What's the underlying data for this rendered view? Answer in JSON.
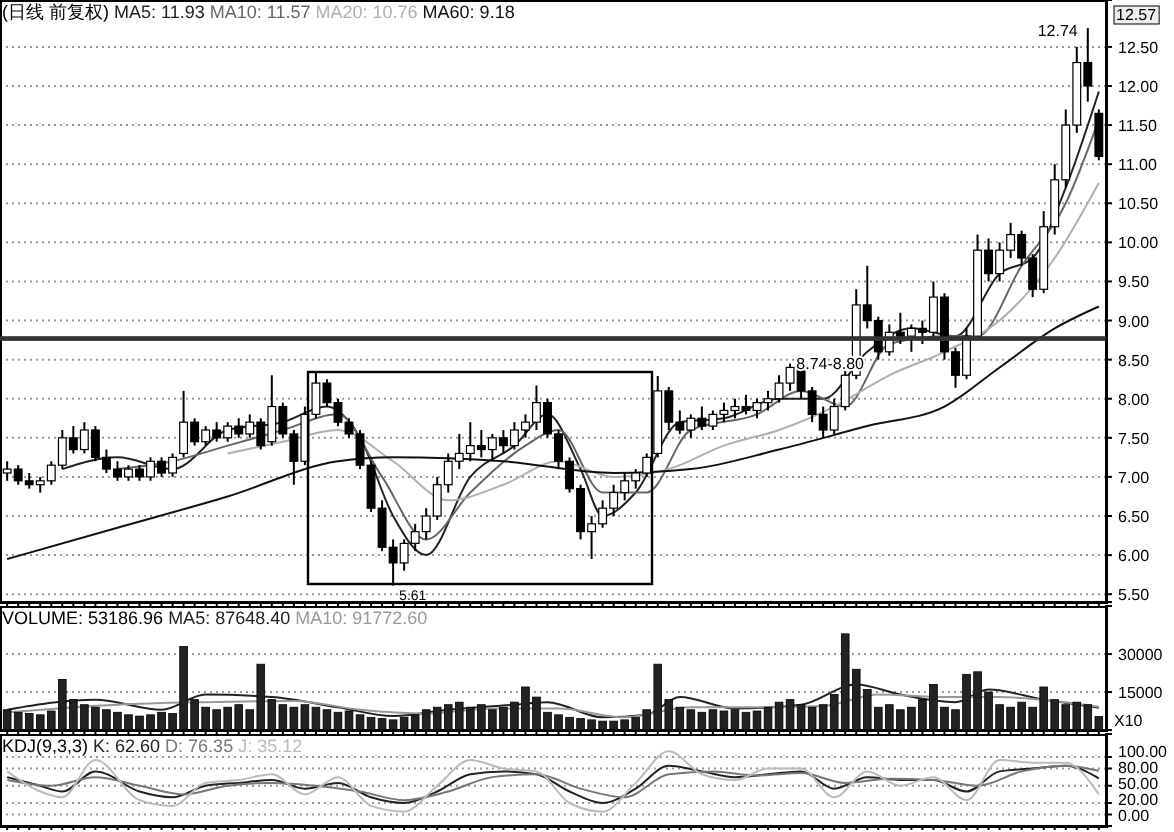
{
  "chart_data": [
    {
      "type": "candlestick",
      "title": "(日线 前复权)",
      "grid": "y",
      "tick_labels": "y",
      "categories": [
        null,
        null,
        null,
        null,
        null,
        null,
        null,
        null,
        null,
        null,
        null,
        null,
        null,
        null,
        null,
        null,
        null,
        null,
        null,
        null,
        null,
        null,
        null,
        null,
        null,
        null,
        null,
        null,
        null,
        null,
        null,
        null,
        null,
        null,
        null,
        null,
        null,
        null,
        null,
        null,
        null,
        null,
        null,
        null,
        null,
        null,
        null,
        null,
        null,
        null,
        null,
        null,
        null,
        null,
        null,
        null,
        null,
        null,
        null,
        null,
        null,
        null,
        null,
        null,
        null,
        null,
        null,
        null,
        null,
        null,
        null,
        null,
        null,
        null,
        null,
        null,
        null,
        null,
        null,
        null,
        null,
        null,
        null,
        null,
        null,
        null,
        null,
        null,
        null,
        null,
        null,
        null,
        null,
        null,
        null,
        null,
        null,
        null,
        null,
        null
      ],
      "ylim": [
        5.4,
        13.1
      ],
      "yticks": [
        {
          "value": 5.5,
          "label": "5.50"
        },
        {
          "value": 6,
          "label": "6.00"
        },
        {
          "value": 6.5,
          "label": "6.50"
        },
        {
          "value": 7,
          "label": "7.00"
        },
        {
          "value": 7.5,
          "label": "7.50"
        },
        {
          "value": 8,
          "label": "8.00"
        },
        {
          "value": 8.5,
          "label": "8.50"
        },
        {
          "value": 9,
          "label": "9.00"
        },
        {
          "value": 9.5,
          "label": "9.50"
        },
        {
          "value": 10,
          "label": "10.00"
        },
        {
          "value": 10.5,
          "label": "10.50"
        },
        {
          "value": 11,
          "label": "11.00"
        },
        {
          "value": 11.5,
          "label": "11.50"
        },
        {
          "value": 12,
          "label": "12.00"
        },
        {
          "value": 12.5,
          "label": "12.50"
        }
      ],
      "ohlc": [
        [
          7.05,
          7.2,
          6.95,
          7.1
        ],
        [
          7.1,
          7.15,
          6.9,
          6.95
        ],
        [
          6.95,
          7.05,
          6.85,
          6.9
        ],
        [
          6.9,
          7.0,
          6.8,
          6.95
        ],
        [
          6.95,
          7.2,
          6.9,
          7.15
        ],
        [
          7.15,
          7.6,
          7.1,
          7.5
        ],
        [
          7.5,
          7.65,
          7.3,
          7.35
        ],
        [
          7.35,
          7.7,
          7.3,
          7.6
        ],
        [
          7.6,
          7.65,
          7.2,
          7.25
        ],
        [
          7.25,
          7.35,
          7.05,
          7.1
        ],
        [
          7.1,
          7.2,
          6.95,
          7.0
        ],
        [
          7.0,
          7.15,
          6.95,
          7.1
        ],
        [
          7.1,
          7.15,
          6.95,
          7.0
        ],
        [
          7.0,
          7.25,
          6.95,
          7.2
        ],
        [
          7.2,
          7.25,
          7.0,
          7.05
        ],
        [
          7.05,
          7.3,
          7.0,
          7.25
        ],
        [
          7.3,
          8.1,
          7.25,
          7.7
        ],
        [
          7.7,
          7.75,
          7.4,
          7.45
        ],
        [
          7.45,
          7.65,
          7.4,
          7.6
        ],
        [
          7.6,
          7.7,
          7.45,
          7.5
        ],
        [
          7.5,
          7.7,
          7.45,
          7.65
        ],
        [
          7.65,
          7.75,
          7.5,
          7.55
        ],
        [
          7.55,
          7.8,
          7.5,
          7.7
        ],
        [
          7.7,
          7.75,
          7.35,
          7.4
        ],
        [
          7.45,
          8.3,
          7.4,
          7.9
        ],
        [
          7.9,
          7.95,
          7.5,
          7.55
        ],
        [
          7.55,
          7.6,
          6.9,
          7.2
        ],
        [
          7.2,
          7.9,
          7.15,
          7.8
        ],
        [
          7.8,
          8.35,
          7.75,
          8.2
        ],
        [
          8.2,
          8.25,
          7.9,
          7.95
        ],
        [
          7.95,
          8.0,
          7.65,
          7.7
        ],
        [
          7.7,
          7.75,
          7.5,
          7.55
        ],
        [
          7.55,
          7.6,
          7.1,
          7.15
        ],
        [
          7.15,
          7.2,
          6.55,
          6.6
        ],
        [
          6.6,
          6.7,
          6.05,
          6.1
        ],
        [
          6.1,
          6.2,
          5.61,
          5.9
        ],
        [
          5.9,
          6.2,
          5.8,
          6.15
        ],
        [
          6.15,
          6.4,
          6.05,
          6.3
        ],
        [
          6.3,
          6.6,
          6.2,
          6.5
        ],
        [
          6.5,
          7.0,
          6.45,
          6.9
        ],
        [
          6.9,
          7.3,
          6.8,
          7.2
        ],
        [
          7.2,
          7.55,
          7.1,
          7.3
        ],
        [
          7.3,
          7.7,
          7.2,
          7.4
        ],
        [
          7.4,
          7.6,
          7.25,
          7.35
        ],
        [
          7.35,
          7.55,
          7.2,
          7.5
        ],
        [
          7.5,
          7.6,
          7.3,
          7.4
        ],
        [
          7.4,
          7.7,
          7.35,
          7.6
        ],
        [
          7.6,
          7.8,
          7.5,
          7.7
        ],
        [
          7.7,
          8.17,
          7.6,
          7.95
        ],
        [
          7.95,
          8.0,
          7.5,
          7.55
        ],
        [
          7.55,
          7.6,
          7.1,
          7.2
        ],
        [
          7.2,
          7.25,
          6.8,
          6.85
        ],
        [
          6.85,
          6.9,
          6.2,
          6.3
        ],
        [
          6.3,
          6.5,
          5.95,
          6.4
        ],
        [
          6.4,
          6.7,
          6.35,
          6.6
        ],
        [
          6.6,
          6.9,
          6.5,
          6.8
        ],
        [
          6.8,
          7.05,
          6.7,
          6.95
        ],
        [
          6.95,
          7.1,
          6.85,
          7.05
        ],
        [
          7.05,
          7.3,
          7.0,
          7.25
        ],
        [
          7.3,
          8.29,
          7.25,
          8.1
        ],
        [
          8.1,
          8.15,
          7.6,
          7.7
        ],
        [
          7.7,
          7.85,
          7.55,
          7.6
        ],
        [
          7.6,
          7.8,
          7.5,
          7.75
        ],
        [
          7.75,
          7.9,
          7.6,
          7.65
        ],
        [
          7.65,
          7.85,
          7.6,
          7.8
        ],
        [
          7.8,
          7.95,
          7.7,
          7.85
        ],
        [
          7.85,
          8.0,
          7.75,
          7.9
        ],
        [
          7.9,
          8.05,
          7.8,
          7.85
        ],
        [
          7.85,
          8.0,
          7.75,
          7.95
        ],
        [
          7.95,
          8.1,
          7.85,
          8.0
        ],
        [
          8.0,
          8.3,
          7.95,
          8.2
        ],
        [
          8.2,
          8.45,
          8.1,
          8.4
        ],
        [
          8.4,
          8.5,
          8.0,
          8.1
        ],
        [
          8.1,
          8.15,
          7.7,
          7.8
        ],
        [
          7.8,
          7.9,
          7.5,
          7.6
        ],
        [
          7.6,
          8.0,
          7.55,
          7.9
        ],
        [
          7.9,
          8.4,
          7.85,
          8.3
        ],
        [
          8.3,
          9.4,
          8.25,
          9.2
        ],
        [
          9.2,
          9.7,
          8.9,
          9.0
        ],
        [
          9.0,
          9.05,
          8.5,
          8.6
        ],
        [
          8.6,
          8.95,
          8.55,
          8.85
        ],
        [
          8.85,
          9.1,
          8.7,
          8.8
        ],
        [
          8.8,
          8.95,
          8.6,
          8.9
        ],
        [
          8.9,
          9.0,
          8.7,
          8.85
        ],
        [
          8.85,
          9.5,
          8.8,
          9.3
        ],
        [
          9.3,
          9.35,
          8.5,
          8.6
        ],
        [
          8.6,
          8.65,
          8.14,
          8.3
        ],
        [
          8.3,
          8.9,
          8.25,
          8.8
        ],
        [
          8.8,
          10.1,
          8.75,
          9.9
        ],
        [
          9.9,
          10.05,
          9.5,
          9.6
        ],
        [
          9.6,
          10.0,
          9.5,
          9.9
        ],
        [
          9.9,
          10.25,
          9.8,
          10.1
        ],
        [
          10.1,
          10.15,
          9.7,
          9.8
        ],
        [
          9.8,
          9.85,
          9.3,
          9.4
        ],
        [
          9.4,
          10.4,
          9.35,
          10.2
        ],
        [
          10.2,
          11.0,
          10.1,
          10.8
        ],
        [
          10.8,
          11.7,
          10.7,
          11.5
        ],
        [
          11.5,
          12.5,
          11.4,
          12.3
        ],
        [
          12.3,
          12.74,
          11.8,
          12.0
        ],
        [
          11.65,
          11.7,
          11.05,
          11.1
        ]
      ],
      "series": [
        {
          "name": "MA5: 11.93",
          "type": "line",
          "color": "#222222",
          "values": [
            null,
            null,
            null,
            null,
            null,
            7.1,
            null,
            null,
            null,
            null,
            7.25,
            null,
            null,
            null,
            null,
            7.1,
            null,
            null,
            null,
            null,
            7.6,
            null,
            null,
            null,
            null,
            7.7,
            null,
            null,
            null,
            7.9,
            null,
            null,
            7.5,
            null,
            null,
            6.5,
            null,
            null,
            6.0,
            null,
            null,
            null,
            7.0,
            null,
            null,
            null,
            7.4,
            null,
            null,
            7.8,
            null,
            null,
            7.1,
            null,
            6.5,
            null,
            null,
            6.8,
            null,
            null,
            null,
            7.7,
            null,
            null,
            null,
            7.75,
            null,
            null,
            null,
            null,
            8.0,
            null,
            null,
            null,
            8.0,
            null,
            null,
            null,
            8.6,
            null,
            null,
            null,
            8.9,
            null,
            null,
            null,
            8.8,
            null,
            null,
            null,
            9.6,
            null,
            null,
            9.8,
            null,
            null,
            10.7,
            null,
            null,
            11.93
          ]
        },
        {
          "name": "MA10: 11.57",
          "type": "line",
          "color": "#666666",
          "values": [
            null,
            null,
            null,
            null,
            null,
            null,
            null,
            null,
            null,
            null,
            7.1,
            null,
            null,
            null,
            null,
            7.2,
            null,
            null,
            null,
            null,
            7.4,
            null,
            null,
            null,
            null,
            7.6,
            null,
            null,
            null,
            null,
            7.8,
            null,
            null,
            null,
            7.0,
            null,
            null,
            null,
            6.2,
            null,
            null,
            null,
            6.8,
            null,
            null,
            null,
            null,
            7.4,
            null,
            null,
            7.6,
            null,
            null,
            null,
            6.8,
            null,
            null,
            null,
            6.8,
            null,
            null,
            null,
            7.6,
            null,
            null,
            null,
            null,
            null,
            7.8,
            null,
            null,
            null,
            8.1,
            null,
            null,
            null,
            7.9,
            null,
            null,
            null,
            8.7,
            null,
            null,
            null,
            null,
            8.8,
            null,
            null,
            8.8,
            null,
            null,
            null,
            9.7,
            null,
            null,
            null,
            10.5,
            null,
            null,
            11.57
          ]
        },
        {
          "name": "MA20: 10.76",
          "type": "line",
          "color": "#b0b0b0",
          "values": [
            null,
            null,
            null,
            null,
            null,
            null,
            null,
            null,
            null,
            null,
            null,
            null,
            null,
            null,
            null,
            null,
            null,
            null,
            null,
            null,
            7.3,
            null,
            null,
            null,
            null,
            7.45,
            null,
            null,
            null,
            null,
            7.6,
            null,
            null,
            null,
            null,
            7.2,
            null,
            null,
            null,
            null,
            6.7,
            null,
            null,
            null,
            null,
            6.9,
            null,
            null,
            null,
            null,
            7.2,
            null,
            null,
            null,
            null,
            7.0,
            null,
            null,
            null,
            null,
            7.1,
            null,
            null,
            null,
            null,
            7.4,
            null,
            null,
            null,
            null,
            7.6,
            null,
            null,
            null,
            null,
            7.9,
            null,
            null,
            null,
            null,
            8.3,
            null,
            null,
            null,
            null,
            8.6,
            null,
            null,
            null,
            null,
            9.0,
            null,
            null,
            null,
            null,
            9.8,
            null,
            null,
            null,
            10.76
          ]
        },
        {
          "name": "MA60: 9.18",
          "type": "line",
          "color": "#111111",
          "values": [
            5.95,
            null,
            null,
            null,
            null,
            null,
            null,
            null,
            null,
            null,
            6.35,
            null,
            null,
            null,
            null,
            null,
            null,
            null,
            null,
            null,
            6.75,
            null,
            null,
            null,
            null,
            null,
            null,
            null,
            null,
            null,
            7.2,
            null,
            null,
            null,
            null,
            7.25,
            null,
            null,
            null,
            null,
            null,
            null,
            null,
            null,
            null,
            7.2,
            null,
            null,
            null,
            null,
            null,
            null,
            null,
            null,
            null,
            7.05,
            null,
            null,
            null,
            null,
            null,
            null,
            7.1,
            null,
            null,
            null,
            null,
            null,
            null,
            null,
            7.35,
            null,
            null,
            null,
            null,
            null,
            null,
            null,
            7.65,
            null,
            null,
            null,
            null,
            null,
            null,
            7.9,
            null,
            null,
            null,
            null,
            8.4,
            null,
            null,
            null,
            null,
            8.9,
            null,
            null,
            null,
            9.18
          ]
        }
      ],
      "bands": [
        {
          "axis": "y",
          "from": 8.74,
          "to": 8.8,
          "label": "8.74-8.80"
        }
      ],
      "annotations": [
        "12.74",
        "5.61",
        "12.57"
      ]
    },
    {
      "type": "bar",
      "title": "VOLUME: 53186.96",
      "grid": "y",
      "tick_labels": "y",
      "color": "#222222",
      "categories": [
        null,
        null,
        null,
        null,
        null,
        null,
        null,
        null,
        null,
        null,
        null,
        null,
        null,
        null,
        null,
        null,
        null,
        null,
        null,
        null,
        null,
        null,
        null,
        null,
        null,
        null,
        null,
        null,
        null,
        null,
        null,
        null,
        null,
        null,
        null,
        null,
        null,
        null,
        null,
        null,
        null,
        null,
        null,
        null,
        null,
        null,
        null,
        null,
        null,
        null,
        null,
        null,
        null,
        null,
        null,
        null,
        null,
        null,
        null,
        null,
        null,
        null,
        null,
        null,
        null,
        null,
        null,
        null,
        null,
        null,
        null,
        null,
        null,
        null,
        null,
        null,
        null,
        null,
        null,
        null,
        null,
        null,
        null,
        null,
        null,
        null,
        null,
        null,
        null,
        null,
        null,
        null,
        null,
        null,
        null,
        null,
        null,
        null,
        null,
        null
      ],
      "ylim": [
        0,
        49000
      ],
      "yticks": [
        15000,
        30000
      ],
      "values": [
        8000,
        7000,
        6500,
        6000,
        7500,
        20000,
        12000,
        10000,
        9000,
        8000,
        7000,
        6000,
        5500,
        6000,
        7000,
        6500,
        33000,
        12000,
        9000,
        8000,
        9000,
        10000,
        8000,
        26000,
        12000,
        10000,
        9000,
        10000,
        9000,
        8000,
        7000,
        7500,
        6000,
        5000,
        4500,
        4000,
        5000,
        6000,
        8000,
        9000,
        10000,
        11000,
        9000,
        10000,
        8000,
        9000,
        11000,
        17000,
        13000,
        7000,
        6000,
        5000,
        4500,
        4000,
        3500,
        3500,
        4000,
        5000,
        8000,
        26000,
        12000,
        9000,
        8000,
        7000,
        8000,
        7500,
        8000,
        7000,
        7500,
        9000,
        11000,
        12000,
        10000,
        9000,
        10000,
        14000,
        38000,
        24000,
        16000,
        9000,
        10000,
        8000,
        9000,
        12000,
        18000,
        9000,
        8000,
        22000,
        23000,
        15000,
        10000,
        9000,
        11000,
        9000,
        17000,
        12000,
        10000,
        11000,
        10000,
        5300
      ],
      "series": [
        {
          "name": "MA5: 87648.40",
          "type": "line",
          "color": "#222222",
          "values": [
            8000,
            null,
            null,
            null,
            null,
            null,
            null,
            null,
            12000,
            null,
            null,
            null,
            null,
            null,
            8000,
            null,
            null,
            null,
            14000,
            null,
            null,
            null,
            null,
            null,
            13000,
            null,
            null,
            null,
            null,
            null,
            9000,
            null,
            null,
            null,
            null,
            5500,
            null,
            null,
            null,
            null,
            8000,
            null,
            null,
            null,
            null,
            null,
            10000,
            null,
            null,
            11000,
            null,
            null,
            null,
            null,
            5000,
            null,
            null,
            null,
            6000,
            null,
            null,
            13000,
            null,
            null,
            null,
            null,
            8500,
            null,
            null,
            null,
            null,
            null,
            10000,
            null,
            null,
            null,
            null,
            18000,
            null,
            null,
            null,
            14000,
            null,
            null,
            null,
            null,
            11000,
            null,
            null,
            16000,
            null,
            null,
            null,
            null,
            12000,
            null,
            null,
            null,
            null,
            8800
          ]
        },
        {
          "name": "MA10: 91772.60",
          "type": "line",
          "color": "#999999",
          "values": [
            7000,
            null,
            null,
            null,
            null,
            null,
            null,
            null,
            null,
            null,
            10000,
            null,
            null,
            null,
            null,
            null,
            null,
            null,
            11000,
            null,
            null,
            null,
            null,
            null,
            null,
            null,
            11500,
            null,
            null,
            null,
            null,
            null,
            8000,
            null,
            null,
            null,
            null,
            null,
            6500,
            null,
            null,
            null,
            null,
            null,
            8500,
            null,
            null,
            null,
            null,
            null,
            8500,
            null,
            null,
            null,
            null,
            null,
            5000,
            null,
            null,
            null,
            null,
            null,
            9000,
            null,
            null,
            null,
            null,
            null,
            9000,
            null,
            null,
            null,
            null,
            null,
            9500,
            null,
            null,
            null,
            null,
            14000,
            null,
            null,
            null,
            null,
            null,
            13000,
            null,
            null,
            null,
            null,
            13000,
            null,
            null,
            null,
            null,
            11500,
            null,
            null,
            null,
            9200
          ]
        }
      ],
      "annotations": [
        "X10"
      ]
    },
    {
      "type": "line",
      "title": "KDJ(9,3,3)",
      "grid": "y",
      "tick_labels": "y",
      "categories": [
        null,
        null,
        null,
        null,
        null,
        null,
        null,
        null,
        null,
        null,
        null,
        null,
        null,
        null,
        null,
        null,
        null,
        null,
        null,
        null,
        null,
        null,
        null,
        null,
        null,
        null,
        null,
        null,
        null,
        null,
        null,
        null,
        null,
        null,
        null,
        null,
        null,
        null,
        null,
        null,
        null,
        null,
        null,
        null,
        null,
        null,
        null,
        null,
        null,
        null,
        null,
        null,
        null,
        null,
        null,
        null,
        null,
        null,
        null,
        null,
        null,
        null,
        null,
        null,
        null,
        null,
        null,
        null,
        null,
        null,
        null,
        null,
        null,
        null,
        null,
        null,
        null,
        null,
        null,
        null,
        null,
        null,
        null,
        null,
        null,
        null,
        null,
        null,
        null,
        null,
        null,
        null,
        null,
        null,
        null,
        null,
        null,
        null,
        null,
        null
      ],
      "ylim": [
        -20,
        140
      ],
      "yticks": [
        {
          "value": 0,
          "label": "0.00"
        },
        {
          "value": 20,
          "label": "20.00"
        },
        {
          "value": 50,
          "label": "50.00"
        },
        {
          "value": 80,
          "label": "80.00"
        },
        {
          "value": 100,
          "label": "100.00"
        }
      ],
      "series": [
        {
          "name": "K: 62.60",
          "color": "#222222",
          "values": [
            65,
            null,
            null,
            50,
            null,
            40,
            null,
            null,
            75,
            null,
            null,
            null,
            40,
            null,
            null,
            30,
            null,
            null,
            50,
            null,
            null,
            55,
            null,
            null,
            60,
            null,
            null,
            45,
            null,
            null,
            55,
            null,
            null,
            30,
            null,
            null,
            20,
            null,
            null,
            40,
            null,
            null,
            70,
            null,
            null,
            75,
            null,
            null,
            70,
            null,
            null,
            40,
            null,
            null,
            20,
            null,
            null,
            45,
            null,
            null,
            85,
            null,
            null,
            75,
            null,
            null,
            65,
            null,
            null,
            70,
            null,
            null,
            75,
            null,
            null,
            45,
            null,
            null,
            65,
            null,
            null,
            60,
            null,
            null,
            60,
            null,
            null,
            40,
            null,
            null,
            75,
            null,
            null,
            80,
            null,
            null,
            85,
            null,
            null,
            63
          ]
        },
        {
          "name": "D: 76.35",
          "color": "#777777",
          "values": [
            60,
            null,
            null,
            null,
            50,
            null,
            null,
            null,
            65,
            null,
            null,
            null,
            50,
            null,
            null,
            null,
            35,
            null,
            null,
            null,
            50,
            null,
            null,
            null,
            55,
            null,
            null,
            null,
            50,
            null,
            null,
            null,
            40,
            null,
            null,
            null,
            25,
            null,
            null,
            null,
            40,
            null,
            null,
            null,
            65,
            null,
            null,
            null,
            70,
            null,
            null,
            null,
            45,
            null,
            null,
            null,
            30,
            null,
            null,
            null,
            70,
            null,
            null,
            null,
            75,
            null,
            null,
            null,
            68,
            null,
            null,
            null,
            72,
            null,
            null,
            null,
            55,
            null,
            null,
            null,
            62,
            null,
            null,
            null,
            60,
            null,
            null,
            null,
            50,
            null,
            null,
            null,
            75,
            null,
            null,
            null,
            85,
            null,
            null,
            76
          ]
        },
        {
          "name": "J: 35.12",
          "color": "#bbbbbb",
          "values": [
            75,
            null,
            null,
            40,
            null,
            30,
            null,
            null,
            95,
            null,
            null,
            null,
            25,
            null,
            null,
            15,
            null,
            null,
            55,
            null,
            null,
            60,
            null,
            null,
            70,
            null,
            null,
            35,
            null,
            null,
            65,
            null,
            null,
            15,
            null,
            null,
            5,
            null,
            null,
            50,
            null,
            null,
            95,
            null,
            null,
            80,
            null,
            null,
            75,
            null,
            null,
            20,
            null,
            null,
            5,
            null,
            null,
            55,
            null,
            null,
            110,
            null,
            null,
            70,
            null,
            null,
            60,
            null,
            null,
            80,
            null,
            null,
            80,
            null,
            null,
            30,
            null,
            null,
            75,
            null,
            null,
            50,
            null,
            null,
            65,
            null,
            null,
            25,
            null,
            null,
            95,
            null,
            null,
            90,
            null,
            null,
            90,
            null,
            null,
            35
          ]
        }
      ]
    }
  ]
}
